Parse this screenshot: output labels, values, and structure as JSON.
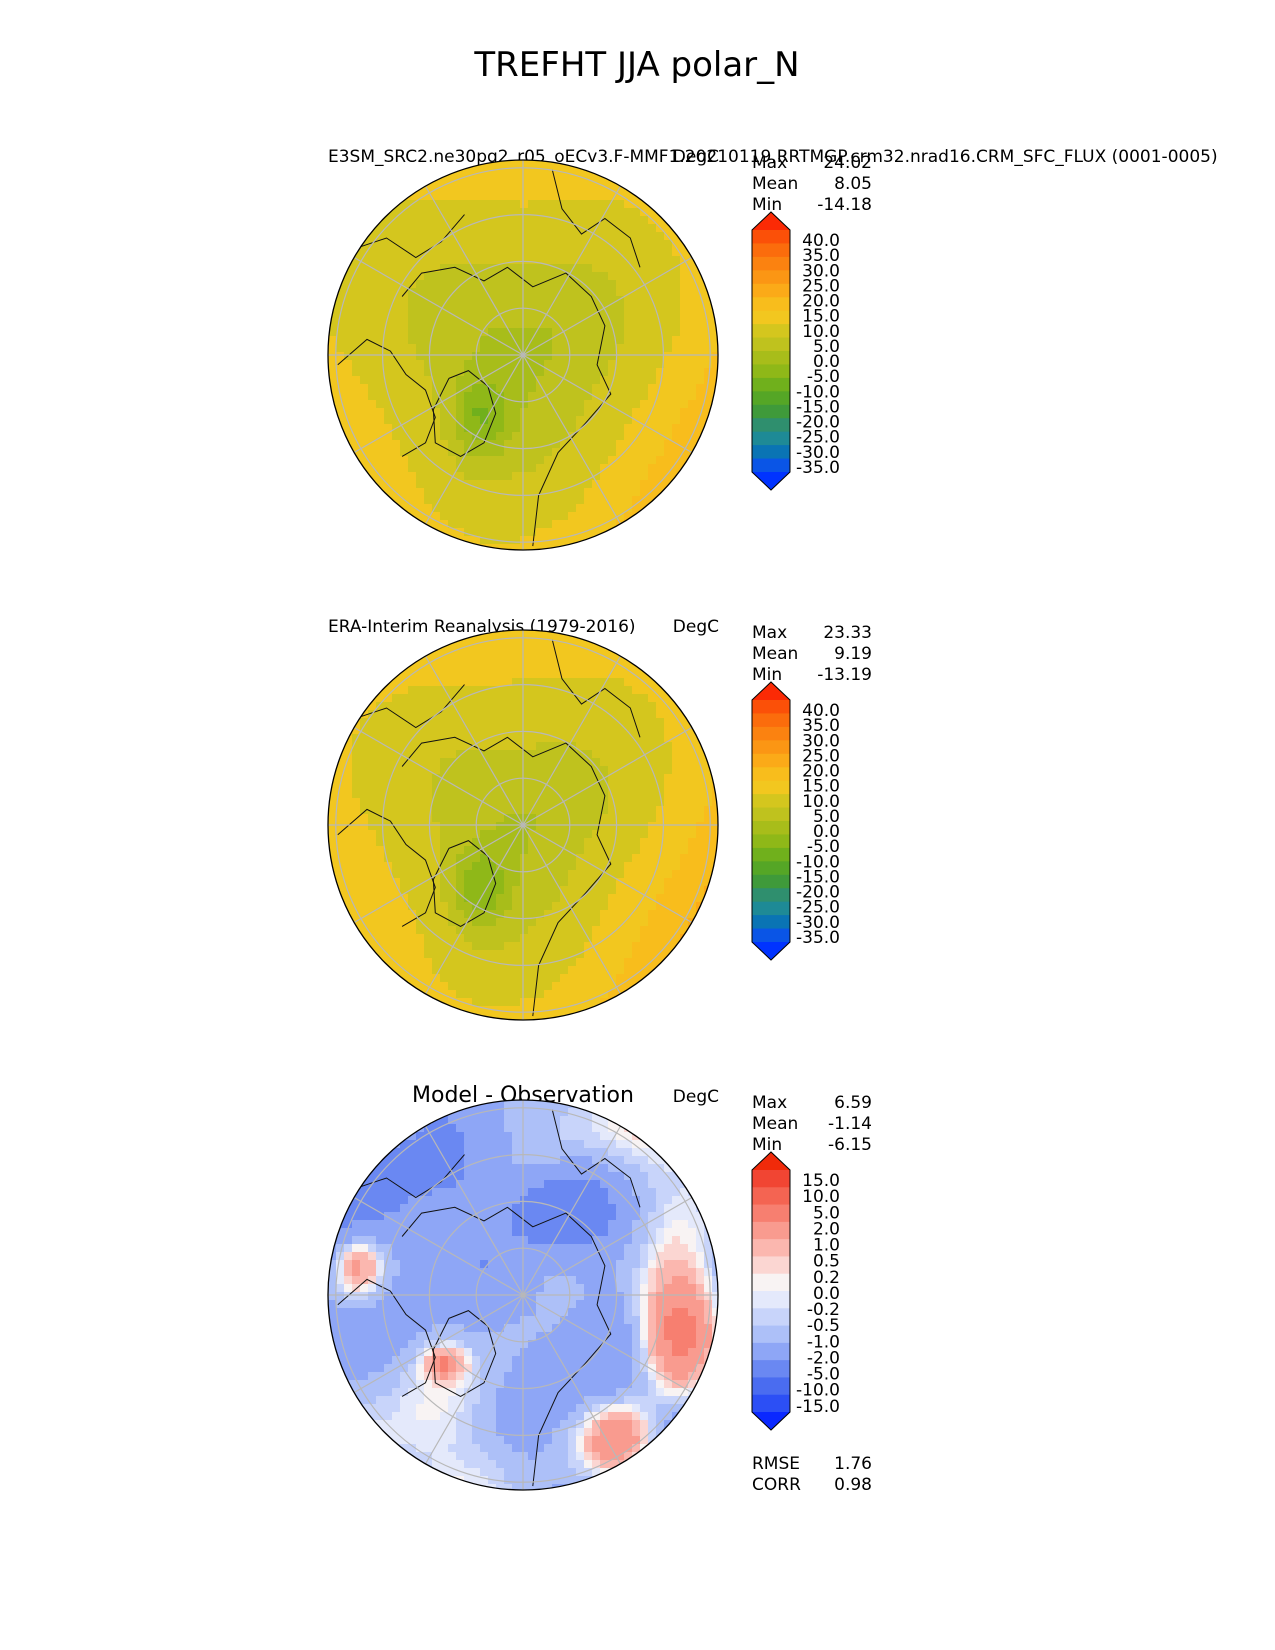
{
  "figure_title": "TREFHT JJA polar_N",
  "colors": {
    "abs_levels": [
      "#0033ff",
      "#0a55e6",
      "#0a74b4",
      "#1e8a96",
      "#2f8f6e",
      "#3f9a3a",
      "#55a626",
      "#70b01c",
      "#8fb818",
      "#a8bd1a",
      "#bfc21e",
      "#d4c61e",
      "#f2c71f",
      "#f8bd1c",
      "#fbaa18",
      "#fb9614",
      "#fb8210",
      "#fb6c0c",
      "#fb5008",
      "#fb2a05"
    ],
    "diff_levels": [
      "#0a28ff",
      "#2c4ff5",
      "#4a6cf0",
      "#6a88f2",
      "#8ea6f6",
      "#adc0f8",
      "#c8d4fa",
      "#e4e9fb",
      "#f8f3f3",
      "#fbd6d2",
      "#fbb7af",
      "#f99b8f",
      "#f77f70",
      "#f46452",
      "#f14533",
      "#f02a0a"
    ]
  },
  "chart_data": [
    {
      "type": "heatmap",
      "projection": "north-polar-stereographic",
      "title_left": "E3SM_SRC2.ne30pg2_r05_oECv3.F-MMF1.20210119.RRTMGP.crm32.nrad16.CRM_SFC_FLUX (0001-0005)",
      "units": "DegC",
      "stats": [
        {
          "label": "Max",
          "value": "24.02"
        },
        {
          "label": "Mean",
          "value": "8.05"
        },
        {
          "label": "Min",
          "value": "-14.18"
        }
      ],
      "colorbar_ticks": [
        "40.0",
        "35.0",
        "30.0",
        "25.0",
        "20.0",
        "15.0",
        "10.0",
        "5.0",
        "0.0",
        "-5.0",
        "-10.0",
        "-15.0",
        "-20.0",
        "-25.0",
        "-30.0",
        "-35.0"
      ],
      "palette": "abs",
      "field": "model"
    },
    {
      "type": "heatmap",
      "projection": "north-polar-stereographic",
      "title_left": "ERA-Interim Reanalysis (1979-2016)",
      "units": "DegC",
      "stats": [
        {
          "label": "Max",
          "value": "23.33"
        },
        {
          "label": "Mean",
          "value": "9.19"
        },
        {
          "label": "Min",
          "value": "-13.19"
        }
      ],
      "colorbar_ticks": [
        "40.0",
        "35.0",
        "30.0",
        "25.0",
        "20.0",
        "15.0",
        "10.0",
        "5.0",
        "0.0",
        "-5.0",
        "-10.0",
        "-15.0",
        "-20.0",
        "-25.0",
        "-30.0",
        "-35.0"
      ],
      "palette": "abs",
      "field": "obs"
    },
    {
      "type": "heatmap",
      "projection": "north-polar-stereographic",
      "title_center": "Model - Observation",
      "units": "DegC",
      "stats": [
        {
          "label": "Max",
          "value": "6.59"
        },
        {
          "label": "Mean",
          "value": "-1.14"
        },
        {
          "label": "Min",
          "value": "-6.15"
        }
      ],
      "colorbar_ticks": [
        "15.0",
        "10.0",
        "5.0",
        "2.0",
        "1.0",
        "0.5",
        "0.2",
        "0.0",
        "-0.2",
        "-0.5",
        "-1.0",
        "-2.0",
        "-5.0",
        "-10.0",
        "-15.0"
      ],
      "palette": "diff",
      "field": "diff",
      "metrics": [
        {
          "label": "RMSE",
          "value": "1.76"
        },
        {
          "label": "CORR",
          "value": "0.98"
        }
      ]
    }
  ]
}
